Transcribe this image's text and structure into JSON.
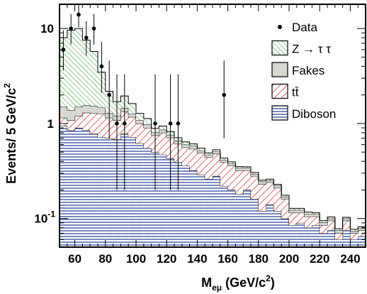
{
  "chart_data": {
    "type": "histogram",
    "title": "",
    "xlabel": {
      "main": "M",
      "sub": "eμ",
      "rest": " (GeV/c",
      "sup": "2",
      "close": ")"
    },
    "ylabel": {
      "main": "Events/ 5 GeV/c",
      "sup": "2"
    },
    "xlim": [
      50,
      250
    ],
    "ylim": [
      0.05,
      18
    ],
    "y_scale": "log",
    "bin_width": 5,
    "x_ticks": [
      60,
      80,
      100,
      120,
      140,
      160,
      180,
      200,
      220,
      240
    ],
    "x_tick_labels": [
      "60",
      "80",
      "100",
      "120",
      "140",
      "160",
      "180",
      "200",
      "220",
      "240"
    ],
    "y_ticks": [
      0.1,
      1,
      10
    ],
    "y_tick_labels": [
      {
        "base": "10",
        "sup": "-1"
      },
      {
        "base": "1",
        "sup": ""
      },
      {
        "base": "10",
        "sup": ""
      }
    ],
    "bin_edges_start": [
      50,
      55,
      60,
      65,
      70,
      75,
      80,
      85,
      90,
      95,
      100,
      105,
      110,
      115,
      120,
      125,
      130,
      135,
      140,
      145,
      150,
      155,
      160,
      165,
      170,
      175,
      180,
      185,
      190,
      195,
      200,
      205,
      210,
      215,
      220,
      225,
      230,
      235,
      240,
      245
    ],
    "stack": [
      {
        "name": "Diboson",
        "fill": "#1f3a93",
        "pattern": "horizontal",
        "values": [
          0.95,
          0.85,
          0.9,
          0.85,
          0.78,
          0.72,
          0.7,
          0.68,
          0.78,
          0.72,
          0.62,
          0.55,
          0.5,
          0.47,
          0.43,
          0.39,
          0.36,
          0.32,
          0.29,
          0.26,
          0.28,
          0.22,
          0.2,
          0.18,
          0.2,
          0.16,
          0.12,
          0.14,
          0.12,
          0.1,
          0.085,
          0.09,
          0.08,
          0.085,
          0.07,
          0.075,
          0.06,
          0.075,
          0.06,
          0.065
        ]
      },
      {
        "name": "tt̄",
        "fill": "#d62728",
        "pattern": "diagonal-down",
        "values": [
          0.2,
          0.23,
          0.3,
          0.45,
          0.5,
          0.55,
          0.45,
          0.4,
          0.55,
          0.45,
          0.38,
          0.35,
          0.25,
          0.33,
          0.28,
          0.22,
          0.2,
          0.22,
          0.2,
          0.18,
          0.2,
          0.17,
          0.16,
          0.14,
          0.12,
          0.12,
          0.11,
          0.1,
          0.09,
          0.06,
          0.03,
          0.025,
          0.025,
          0.02,
          0.015,
          0.02,
          0.01,
          0.02,
          0.01,
          0.01
        ]
      },
      {
        "name": "Fakes",
        "fill": "#d8d8d2",
        "pattern": "solid",
        "values": [
          0.35,
          0.3,
          0.3,
          0.25,
          0.25,
          0.2,
          0.13,
          0.12,
          0.12,
          0.1,
          0.08,
          0.08,
          0.06,
          0.06,
          0.05,
          0.05,
          0.04,
          0.04,
          0.03,
          0.03,
          0.03,
          0.025,
          0.02,
          0.02,
          0.02,
          0.015,
          0.015,
          0.012,
          0.012,
          0.01,
          0.008,
          0.008,
          0.007,
          0.006,
          0.006,
          0.005,
          0.005,
          0.005,
          0.004,
          0.004
        ]
      },
      {
        "name": "Z → τ τ",
        "fill": "#2ca02c",
        "pattern": "diagonal-up",
        "values": [
          6.5,
          8.2,
          8.5,
          6.0,
          4.2,
          2.0,
          0.9,
          0.5,
          0.5,
          0.35,
          0.2,
          0.15,
          0.08,
          0.08,
          0.06,
          0.05,
          0.04,
          0.03,
          0.03,
          0.02,
          0.02,
          0.018,
          0.015,
          0.012,
          0.01,
          0.01,
          0.008,
          0.008,
          0.007,
          0.006,
          0.005,
          0.005,
          0.005,
          0.004,
          0.004,
          0.004,
          0.003,
          0.003,
          0.003,
          0.003
        ]
      }
    ],
    "data_points": [
      {
        "x": 52.5,
        "y": 6,
        "yerr_low": 2.4,
        "yerr_high": 3.6
      },
      {
        "x": 57.5,
        "y": 10,
        "yerr_low": 3.2,
        "yerr_high": 4.2
      },
      {
        "x": 62.5,
        "y": 14,
        "yerr_low": 3.7,
        "yerr_high": 4.8
      },
      {
        "x": 67.5,
        "y": 8,
        "yerr_low": 2.8,
        "yerr_high": 3.9
      },
      {
        "x": 72.5,
        "y": 10,
        "yerr_low": 3.2,
        "yerr_high": 4.2
      },
      {
        "x": 77.5,
        "y": 4,
        "yerr_low": 1.9,
        "yerr_high": 3.2
      },
      {
        "x": 82.5,
        "y": 2,
        "yerr_low": 1.3,
        "yerr_high": 2.6
      },
      {
        "x": 87.5,
        "y": 1,
        "yerr_low": 0.8,
        "yerr_high": 2.3
      },
      {
        "x": 92.5,
        "y": 1,
        "yerr_low": 0.8,
        "yerr_high": 2.3
      },
      {
        "x": 112.5,
        "y": 1,
        "yerr_low": 0.8,
        "yerr_high": 2.3
      },
      {
        "x": 122.5,
        "y": 1,
        "yerr_low": 0.8,
        "yerr_high": 2.3
      },
      {
        "x": 127.5,
        "y": 1,
        "yerr_low": 0.8,
        "yerr_high": 2.3
      },
      {
        "x": 157.5,
        "y": 2,
        "yerr_low": 1.3,
        "yerr_high": 2.6
      }
    ],
    "legend": {
      "placement": "top-right",
      "entries": [
        {
          "label": "Data",
          "kind": "marker",
          "series": "Data"
        },
        {
          "label": "Z → τ τ",
          "kind": "box",
          "series": "Z → τ τ"
        },
        {
          "label": "Fakes",
          "kind": "box",
          "series": "Fakes"
        },
        {
          "label": "tt̄",
          "kind": "box",
          "series": "tt̄"
        },
        {
          "label": "Diboson",
          "kind": "box",
          "series": "Diboson"
        }
      ]
    }
  }
}
